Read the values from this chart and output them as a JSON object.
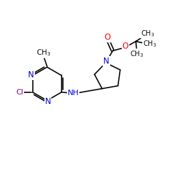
{
  "background_color": "#ffffff",
  "bond_color": "#000000",
  "atom_colors": {
    "N": "#0000cd",
    "O": "#ff0000",
    "Cl": "#8b008b",
    "C": "#000000"
  },
  "figsize": [
    2.5,
    2.5
  ],
  "dpi": 100,
  "xlim": [
    0,
    10
  ],
  "ylim": [
    0,
    10
  ]
}
